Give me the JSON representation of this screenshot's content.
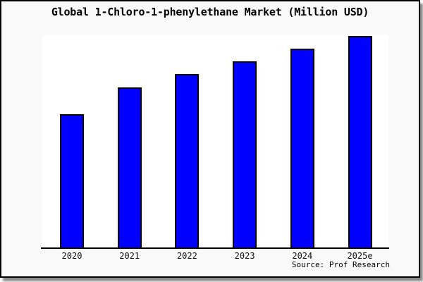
{
  "title": "Global 1-Chloro-1-phenylethane Market (Million USD)",
  "source": "Source: Prof Research",
  "colors": {
    "bar_fill": "#0000FF",
    "bar_border": "#000000",
    "card_background": "#f9f9f9",
    "plot_background": "#ffffff",
    "axis": "#000000",
    "border": "#000000"
  },
  "chart_data": {
    "type": "bar",
    "categories": [
      "2020",
      "2021",
      "2022",
      "2023",
      "2024",
      "2025e"
    ],
    "values": [
      63,
      75.5,
      82,
      88,
      94,
      100
    ],
    "title": "Global 1-Chloro-1-phenylethane Market (Million USD)",
    "xlabel": "",
    "ylabel": "",
    "ylim": [
      0,
      100.5
    ],
    "grid": false,
    "legend": false,
    "value_scale_note": "no y-axis shown; values are relative heights with 2025e = 100"
  }
}
